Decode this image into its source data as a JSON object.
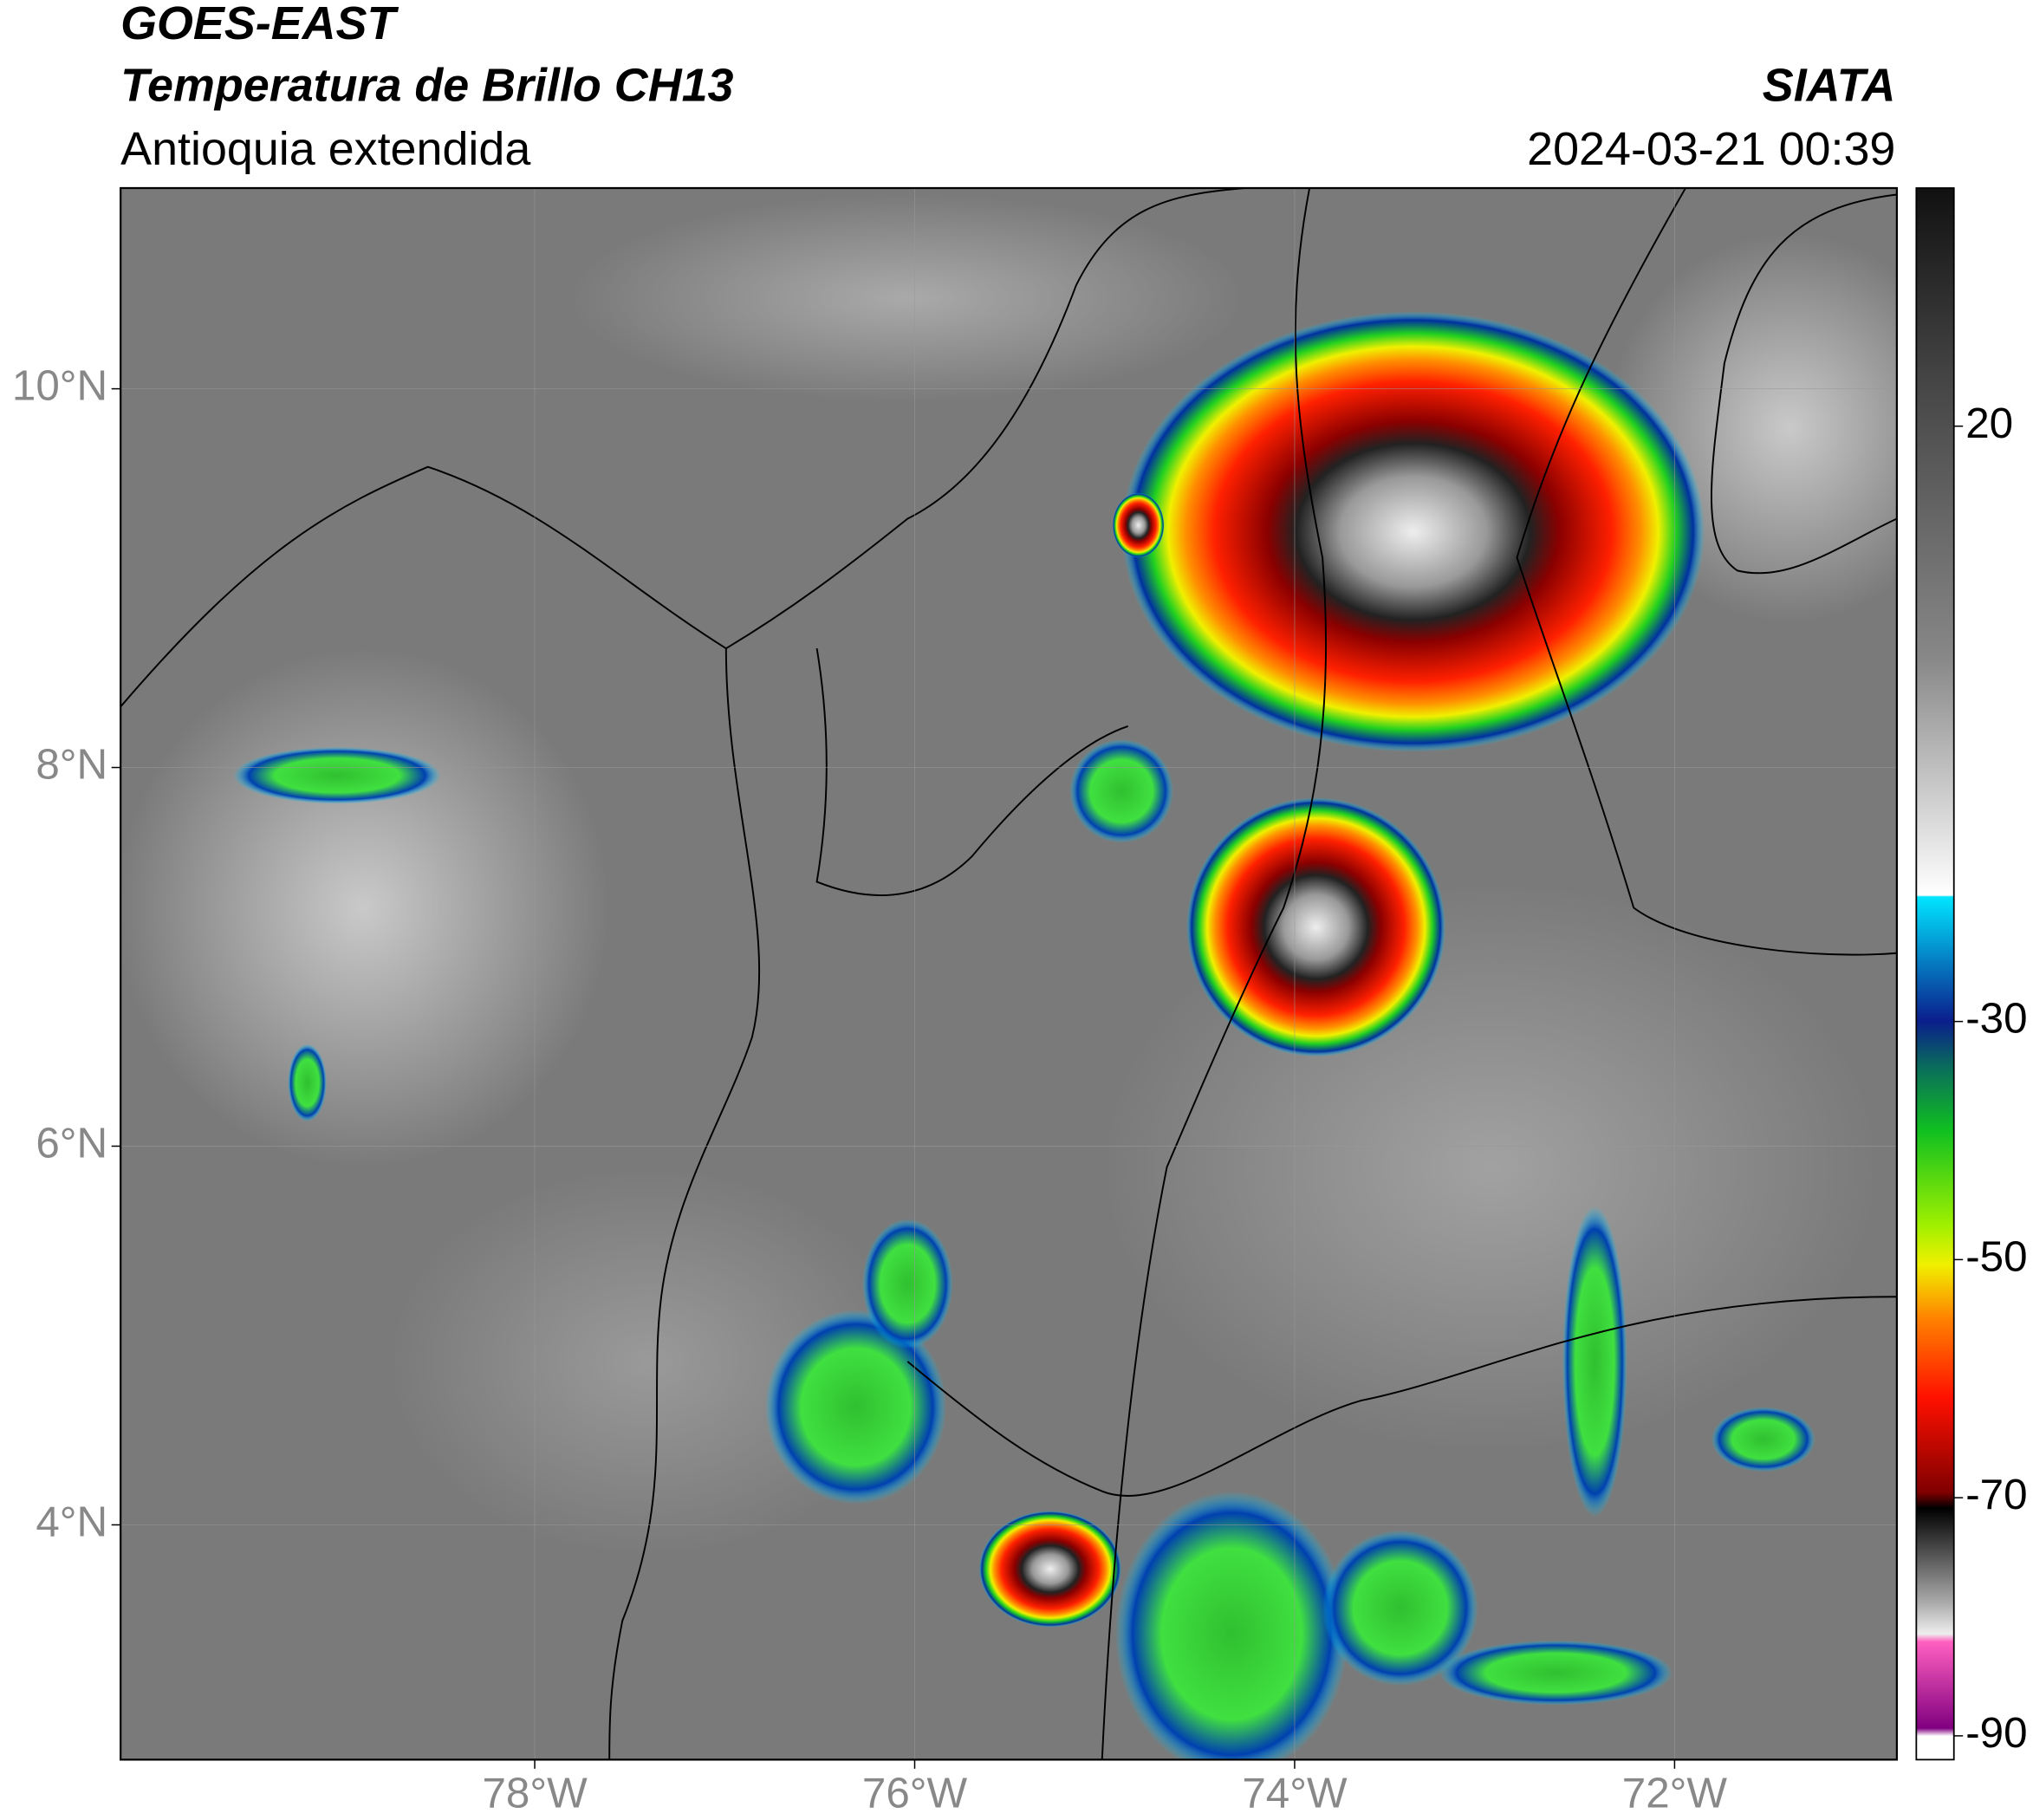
{
  "header": {
    "title": "GOES-EAST",
    "subtitle": "Temperatura de Brillo CH13",
    "region": "Antioquia extendida",
    "source": "SIATA",
    "datetime": "2024-03-21 00:39"
  },
  "map": {
    "xlim": [
      -80.18,
      -70.83
    ],
    "ylim": [
      2.76,
      11.06
    ],
    "xticks": [
      {
        "value": -78,
        "label": "78°W"
      },
      {
        "value": -76,
        "label": "76°W"
      },
      {
        "value": -74,
        "label": "74°W"
      },
      {
        "value": -72,
        "label": "72°W"
      }
    ],
    "yticks": [
      {
        "value": 4,
        "label": "4°N"
      },
      {
        "value": 6,
        "label": "6°N"
      },
      {
        "value": 8,
        "label": "8°N"
      },
      {
        "value": 10,
        "label": "10°N"
      }
    ],
    "grid": true
  },
  "colorbar": {
    "lim": [
      -92,
      40
    ],
    "ticks": [
      20,
      -30,
      -50,
      -70,
      -90
    ]
  }
}
